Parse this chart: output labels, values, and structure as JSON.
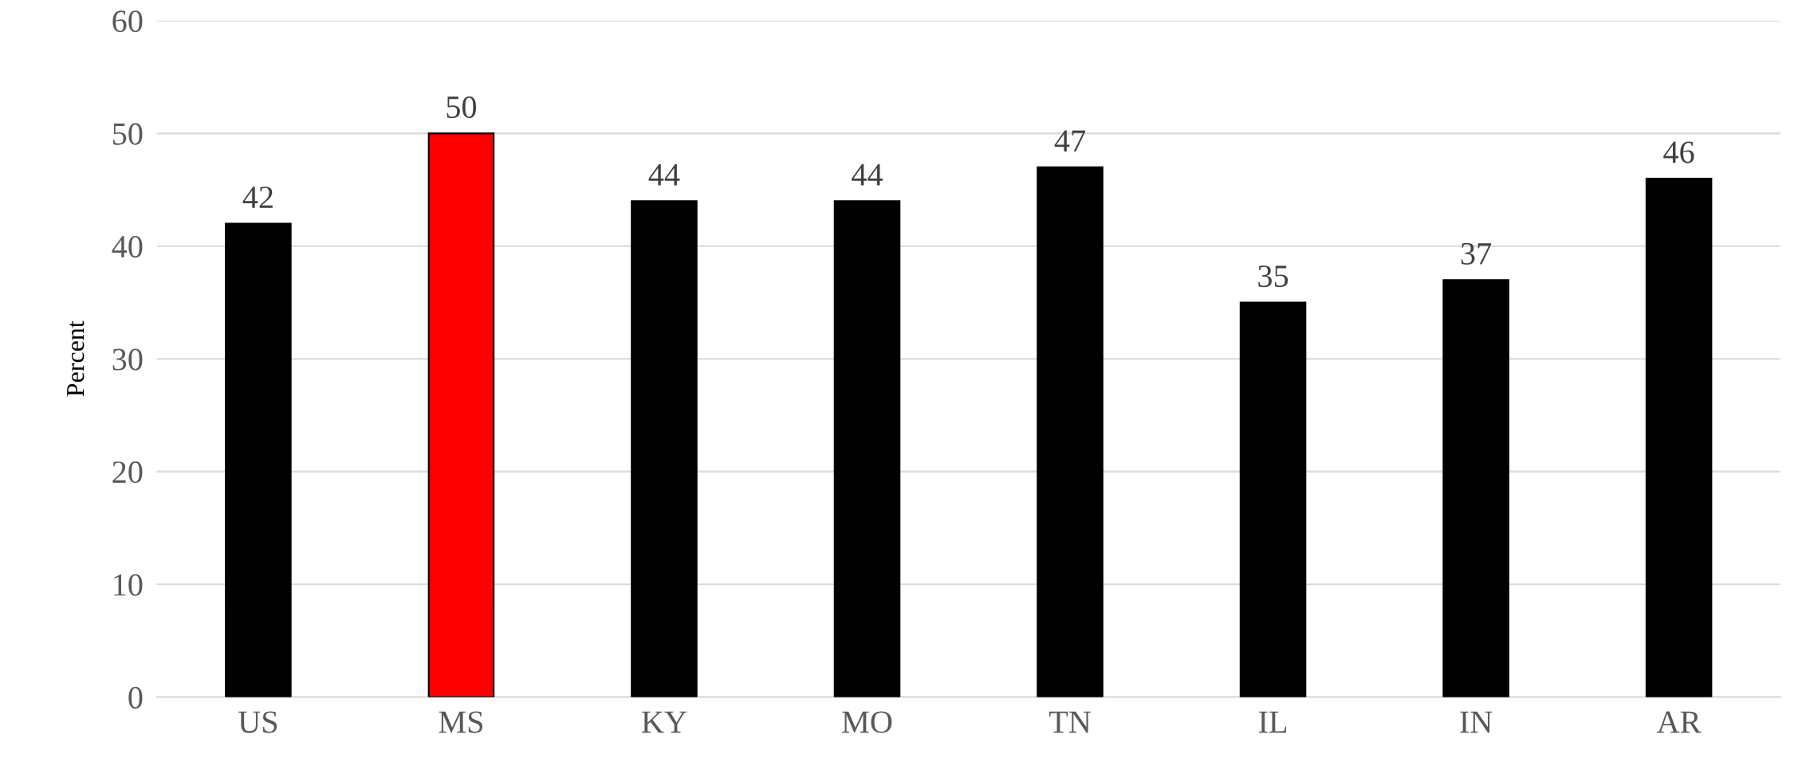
{
  "chart_data": {
    "type": "bar",
    "ylabel": "Percent",
    "categories": [
      "US",
      "MS",
      "KY",
      "MO",
      "TN",
      "IL",
      "IN",
      "AR"
    ],
    "values": [
      42,
      50,
      44,
      44,
      47,
      35,
      37,
      46
    ],
    "colors": [
      "#000000",
      "#ff0000",
      "#000000",
      "#000000",
      "#000000",
      "#000000",
      "#000000",
      "#000000"
    ],
    "ylim": [
      0,
      60
    ],
    "yticks": [
      0,
      10,
      20,
      30,
      40,
      50,
      60
    ],
    "grid": "y",
    "data_labels": true,
    "legend": false
  }
}
